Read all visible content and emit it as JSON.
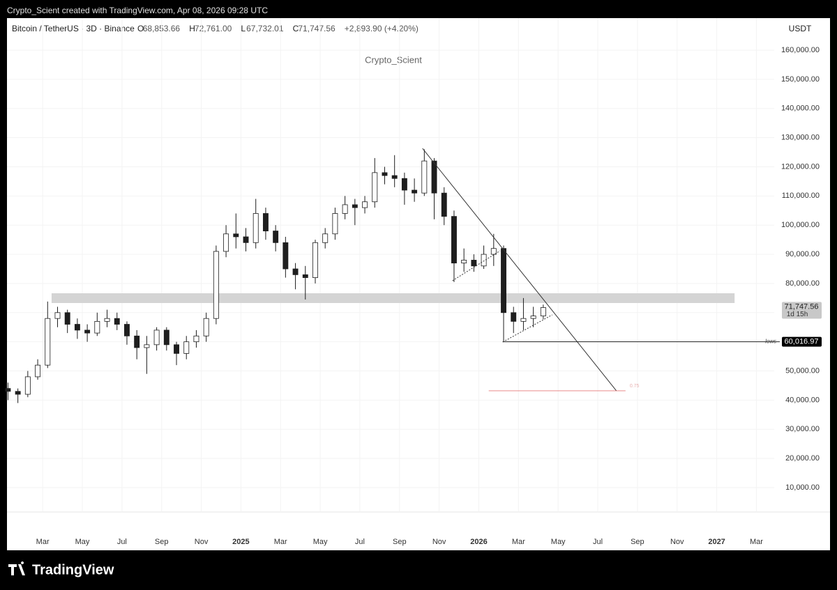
{
  "top_bar": "Crypto_Scient created with TradingView.com, Apr 08, 2026 09:28 UTC",
  "brand": "TradingView",
  "chart_data": {
    "type": "candlestick",
    "title": "Bitcoin / TetherUS · 3D · Binance",
    "legend": [
      {
        "key": "O",
        "text": "68,853.66"
      },
      {
        "key": "H",
        "text": "72,761.00"
      },
      {
        "key": "L",
        "text": "67,732.01"
      },
      {
        "key": "C",
        "text": "71,747.56"
      }
    ],
    "change": "+2,893.90 (+4.20%)",
    "watermark": "Crypto_Scient",
    "currency": "USDT",
    "up_color": "#ffffff",
    "down_color": "#1e1e1e",
    "grid": true,
    "x": [
      0.25,
      0.75,
      1.25,
      1.75,
      2.25,
      2.75,
      3.25,
      3.75,
      4.25,
      4.75,
      5.25,
      5.75,
      6.25,
      6.75,
      7.25,
      7.75,
      8.25,
      8.75,
      9.25,
      9.75,
      10.25,
      10.75,
      11.25,
      11.75,
      12.25,
      12.75,
      13.25,
      13.75,
      14.25,
      14.75,
      15.25,
      15.75,
      16.25,
      16.75,
      17.25,
      17.75,
      18.25,
      18.75,
      19.25,
      19.75,
      20.25,
      20.75,
      21.25,
      21.75,
      22.25,
      22.75,
      23.25,
      23.75,
      24.25,
      24.75,
      25.25,
      25.75,
      26.25,
      26.75,
      27.25
    ],
    "open": [
      44000,
      43000,
      42000,
      48000,
      52000,
      68000,
      70000,
      66000,
      64000,
      63000,
      67000,
      68000,
      66000,
      62000,
      58000,
      59000,
      64000,
      59000,
      56000,
      60000,
      62000,
      68000,
      91000,
      97000,
      96000,
      94000,
      104000,
      98000,
      94000,
      85000,
      83000,
      82000,
      94000,
      97000,
      104000,
      107000,
      106000,
      108000,
      118000,
      117000,
      116000,
      112000,
      111000,
      122000,
      111000,
      103000,
      87000,
      88000,
      86000,
      90000,
      92000,
      70000,
      67000,
      68000,
      68853.66
    ],
    "high": [
      46000,
      44000,
      50000,
      54000,
      73800,
      72000,
      71000,
      68000,
      66000,
      70000,
      71000,
      70000,
      67000,
      64000,
      62000,
      65000,
      65000,
      60000,
      62000,
      64000,
      70000,
      93000,
      100000,
      104000,
      99000,
      109000,
      106000,
      100000,
      96000,
      87000,
      86000,
      95000,
      99000,
      106000,
      110000,
      109000,
      110000,
      123000,
      120000,
      124000,
      118000,
      116000,
      126000,
      123000,
      113000,
      105000,
      92000,
      90000,
      93000,
      97000,
      93000,
      72000,
      75000,
      72000,
      72761
    ],
    "low": [
      40000,
      39000,
      41000,
      47000,
      51000,
      65000,
      63000,
      61000,
      60000,
      62000,
      65000,
      64000,
      59000,
      54000,
      49000,
      57000,
      57000,
      52000,
      54000,
      58000,
      60000,
      66000,
      89000,
      92000,
      91000,
      92000,
      95000,
      91000,
      82000,
      78000,
      74500,
      80000,
      92000,
      95000,
      102000,
      100000,
      104000,
      106000,
      114000,
      113000,
      107000,
      108000,
      110000,
      102000,
      100000,
      80500,
      84000,
      84000,
      85000,
      86000,
      60000,
      63000,
      64000,
      65000,
      67732.01
    ],
    "close": [
      43000,
      42000,
      48000,
      52000,
      68000,
      70000,
      66000,
      64000,
      63000,
      67000,
      68000,
      66000,
      62000,
      58000,
      59000,
      64000,
      59000,
      56000,
      60000,
      62000,
      68000,
      91000,
      97000,
      96000,
      94000,
      104000,
      98000,
      94000,
      85000,
      83000,
      82000,
      94000,
      97000,
      104000,
      107000,
      106000,
      108000,
      118000,
      117000,
      116000,
      112000,
      111000,
      122000,
      111000,
      103000,
      87000,
      88000,
      86000,
      90000,
      92000,
      70000,
      67000,
      68000,
      68853.66,
      71747.56
    ],
    "xlim": [
      0.2,
      38.9
    ],
    "xticks": [
      {
        "value": 2,
        "label": "Mar"
      },
      {
        "value": 4,
        "label": "May"
      },
      {
        "value": 6,
        "label": "Jul"
      },
      {
        "value": 8,
        "label": "Sep"
      },
      {
        "value": 10,
        "label": "Nov"
      },
      {
        "value": 12,
        "label": "2025"
      },
      {
        "value": 14,
        "label": "Mar"
      },
      {
        "value": 16,
        "label": "May"
      },
      {
        "value": 18,
        "label": "Jul"
      },
      {
        "value": 20,
        "label": "Sep"
      },
      {
        "value": 22,
        "label": "Nov"
      },
      {
        "value": 24,
        "label": "2026"
      },
      {
        "value": 26,
        "label": "Mar"
      },
      {
        "value": 28,
        "label": "May"
      },
      {
        "value": 30,
        "label": "Jul"
      },
      {
        "value": 32,
        "label": "Sep"
      },
      {
        "value": 34,
        "label": "Nov"
      },
      {
        "value": 36,
        "label": "2027"
      },
      {
        "value": 38,
        "label": "Mar"
      }
    ],
    "ylim": [
      1640,
      170990
    ],
    "yticks": [
      {
        "value": 10000,
        "label": "10,000.00"
      },
      {
        "value": 20000,
        "label": "20,000.00"
      },
      {
        "value": 30000,
        "label": "30,000.00"
      },
      {
        "value": 40000,
        "label": "40,000.00"
      },
      {
        "value": 50000,
        "label": "50,000.00"
      },
      {
        "value": 60000,
        "label": "60,000.00"
      },
      {
        "value": 70000,
        "label": "70,000.00"
      },
      {
        "value": 80000,
        "label": "80,000.00"
      },
      {
        "value": 90000,
        "label": "90,000.00"
      },
      {
        "value": 100000,
        "label": "100,000.00"
      },
      {
        "value": 110000,
        "label": "110,000.00"
      },
      {
        "value": 120000,
        "label": "120,000.00"
      },
      {
        "value": 130000,
        "label": "130,000.00"
      },
      {
        "value": 140000,
        "label": "140,000.00"
      },
      {
        "value": 150000,
        "label": "150,000.00"
      },
      {
        "value": 160000,
        "label": "160,000.00"
      }
    ],
    "zone": {
      "x": [
        2.45,
        36.9
      ],
      "y": [
        73300,
        76640
      ],
      "color": "#d4d4d4"
    },
    "trendline": {
      "x": [
        21.16,
        30.94
      ],
      "y": [
        126320,
        43200
      ],
      "color": "#333333"
    },
    "lows": {
      "x": 25.2,
      "value": 60016.97,
      "label": "60,016.97",
      "name": "lows"
    },
    "target": {
      "x": [
        24.5,
        31.4
      ],
      "value": 43200,
      "label": "0.75",
      "color": "#e06060"
    },
    "dotted": [
      {
        "x": [
          22.67,
          25.07
        ],
        "y": [
          80940,
          91210
        ]
      },
      {
        "x": [
          25.21,
          27.7
        ],
        "y": [
          59920,
          69240
        ]
      }
    ],
    "last_price": {
      "value": 71747.56,
      "label": "71,747.56",
      "countdown": "1d 15h"
    }
  }
}
